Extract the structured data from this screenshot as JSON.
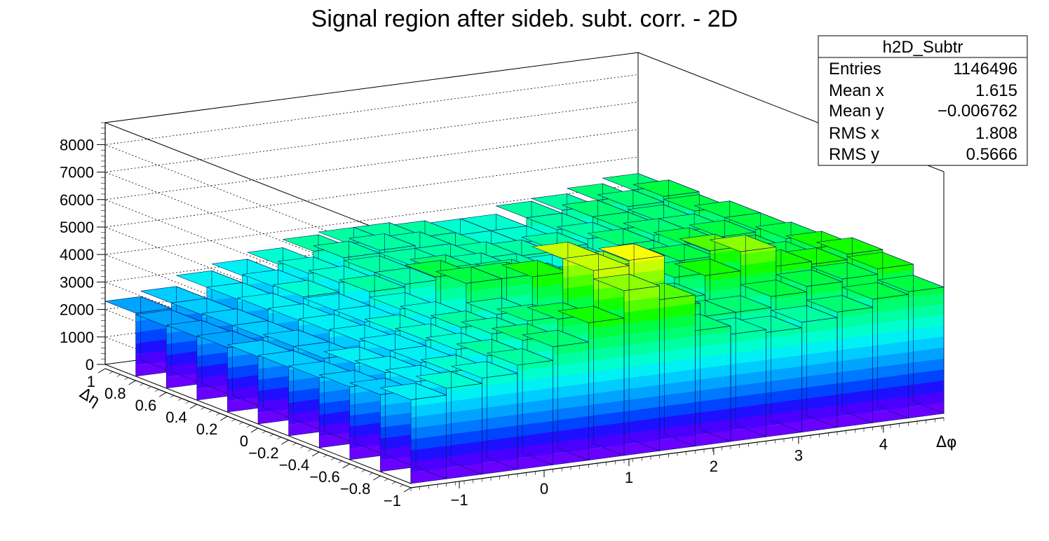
{
  "chart_data": {
    "type": "lego3d",
    "title": "Signal region after sideb. subt. corr. - 2D",
    "xlabel": "Δφ",
    "ylabel": "Δη",
    "zlim": [
      0,
      8800
    ],
    "xlim": [
      -1.5708,
      4.7124
    ],
    "ylim": [
      -1,
      1
    ],
    "x_ticks": [
      -1,
      0,
      1,
      2,
      3,
      4
    ],
    "x_tick_labels": [
      "−1",
      "0",
      "1",
      "2",
      "3",
      "4"
    ],
    "y_ticks": [
      -1,
      -0.8,
      -0.6,
      -0.4,
      -0.2,
      0,
      0.2,
      0.4,
      0.6,
      0.8,
      1
    ],
    "y_tick_labels": [
      "−1",
      "−0.8",
      "−0.6",
      "−0.4",
      "−0.2",
      "0",
      "0.2",
      "0.4",
      "0.6",
      "0.8",
      "1"
    ],
    "z_ticks": [
      0,
      1000,
      2000,
      3000,
      4000,
      5000,
      6000,
      7000,
      8000
    ],
    "z_tick_labels": [
      "0",
      "1000",
      "2000",
      "3000",
      "4000",
      "5000",
      "6000",
      "7000",
      "8000"
    ],
    "grid": true,
    "palette": [
      "#6a00ff",
      "#4a00ff",
      "#1e10ff",
      "#0044ff",
      "#0078ff",
      "#00a4ff",
      "#00ccff",
      "#00f0f4",
      "#00ffcf",
      "#00ffa0",
      "#00ff70",
      "#00ff40",
      "#12ff00",
      "#50ff00",
      "#8cff00",
      "#c8ff00",
      "#f8ff00",
      "#ffd400",
      "#ffa400",
      "#ff7400",
      "#ff4400",
      "#ff1200"
    ],
    "z_bins": [
      [
        3050,
        2800,
        2650,
        2550,
        2500,
        2450,
        2350,
        2300,
        2250,
        2300
      ],
      [
        3300,
        3100,
        3000,
        2900,
        2650,
        2650,
        2550,
        2550,
        2500,
        2500
      ],
      [
        3500,
        3300,
        3200,
        3200,
        3100,
        3050,
        3000,
        2950,
        2900,
        2900
      ],
      [
        3800,
        3700,
        3500,
        3400,
        3300,
        3200,
        3200,
        3250,
        3200,
        3150
      ],
      [
        4300,
        4100,
        3900,
        3700,
        3600,
        3500,
        3700,
        3600,
        3500,
        3400
      ],
      [
        5000,
        4700,
        4200,
        4000,
        4700,
        4500,
        3800,
        3800,
        3900,
        3700
      ],
      [
        6000,
        6300,
        6300,
        5200,
        4700,
        4200,
        4100,
        3900,
        4000,
        3800
      ],
      [
        5500,
        6500,
        5800,
        4800,
        4400,
        4200,
        4000,
        3900,
        3900,
        3800
      ],
      [
        4200,
        4600,
        4800,
        4200,
        3900,
        3900,
        3800,
        3800,
        3700,
        3700
      ],
      [
        3900,
        4100,
        4300,
        4000,
        3800,
        3700,
        3600,
        3700,
        3600,
        3600
      ],
      [
        3800,
        4100,
        5000,
        4500,
        4100,
        3700,
        3700,
        3800,
        3600,
        3600
      ],
      [
        4000,
        4500,
        5700,
        5300,
        4500,
        4200,
        4200,
        4000,
        3900,
        3900
      ],
      [
        4200,
        4700,
        5000,
        4800,
        4600,
        4500,
        4400,
        4200,
        4200,
        4000
      ],
      [
        4500,
        4800,
        4900,
        4700,
        4500,
        4600,
        4400,
        4300,
        4400,
        4200
      ],
      [
        4600,
        5000,
        5100,
        4900,
        4800,
        4700,
        4700,
        4500,
        4600,
        4400
      ]
    ]
  },
  "stats": {
    "name": "h2D_Subtr",
    "rows": [
      {
        "label": "Entries",
        "value": "1146496"
      },
      {
        "label": "Mean x",
        "value": "1.615"
      },
      {
        "label": "Mean y",
        "value": "−0.006762"
      },
      {
        "label": "RMS x",
        "value": "1.808"
      },
      {
        "label": "RMS y",
        "value": "0.5666"
      }
    ]
  }
}
